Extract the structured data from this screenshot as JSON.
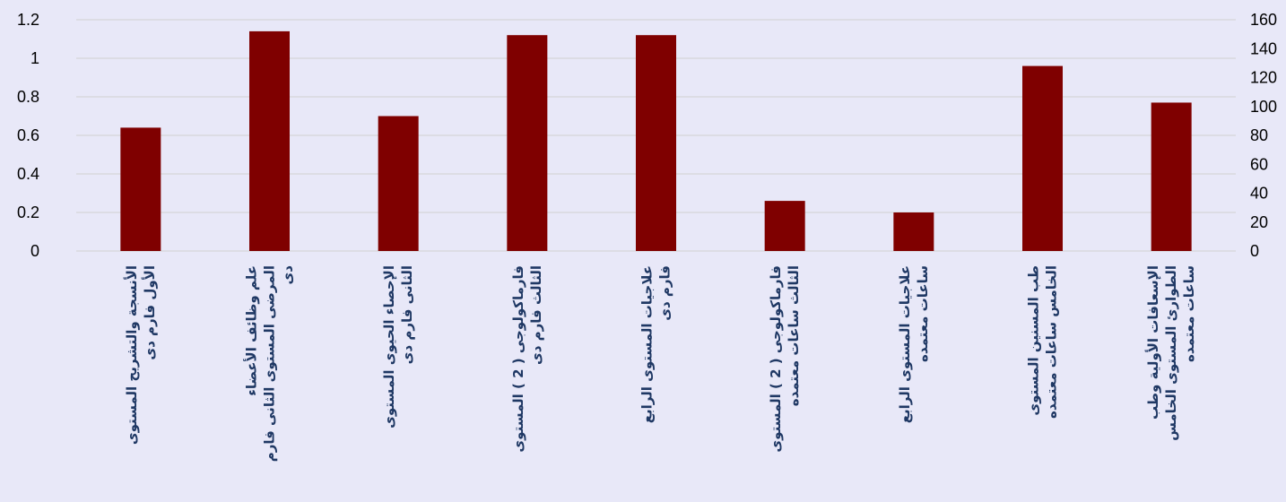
{
  "chart_data": {
    "type": "bar",
    "categories": [
      [
        "الأنسجة والتشريح المستوى",
        "الأول فارم دى"
      ],
      [
        "علم وظائف الأعضاء",
        "المرضى المستوى الثانى فارم",
        "دى"
      ],
      [
        "الإحصاء الحيوى المستوى",
        "الثانى فارم دى"
      ],
      [
        "فارماكولوجى ( 2 ) المستوى",
        "الثالث فارم دى"
      ],
      [
        "علاجيات المستوى الرابع",
        "فارم دى"
      ],
      [
        "فارماكولوجى ( 2 ) المستوى",
        "الثالث ساعات معتمده"
      ],
      [
        "علاجيات المستوى الرابع",
        "ساعات معتمده"
      ],
      [
        "طب المسنين المستوى",
        "الخامس ساعات معتمده"
      ],
      [
        "الإسعافات الأولية وطب",
        "الطوارئ المستوى الخامس",
        "ساعات معتمده"
      ]
    ],
    "values": [
      0.64,
      1.14,
      0.7,
      1.12,
      1.12,
      0.26,
      0.2,
      0.96,
      0.77
    ],
    "y_left": {
      "min": 0,
      "max": 1.2,
      "ticks": [
        "0",
        "0.2",
        "0.4",
        "0.6",
        "0.8",
        "1",
        "1.2"
      ]
    },
    "y_right": {
      "min": 0,
      "max": 160,
      "ticks": [
        "0",
        "20",
        "40",
        "60",
        "80",
        "100",
        "120",
        "140",
        "160"
      ]
    },
    "grid": true,
    "colors": {
      "bar": "#7f0000",
      "background": "#e8e8f8",
      "grid": "#d0d0d0",
      "category_text": "#1f3864"
    }
  }
}
